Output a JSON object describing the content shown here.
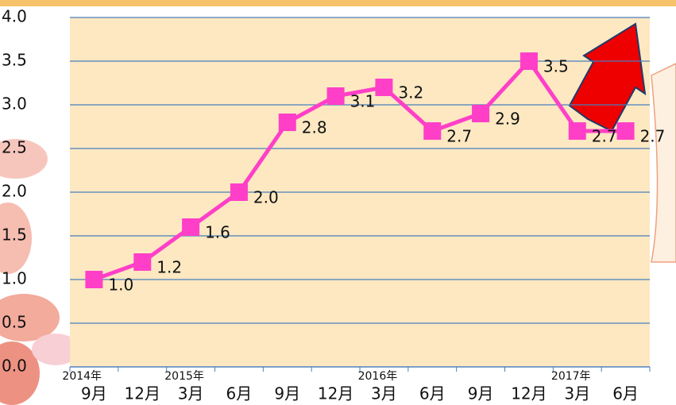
{
  "chart_data": {
    "type": "line",
    "categories": [
      "9月",
      "12月",
      "3月",
      "6月",
      "9月",
      "12月",
      "3月",
      "6月",
      "9月",
      "12月",
      "3月",
      "6月"
    ],
    "years": [
      "2014年",
      null,
      "2015年",
      null,
      null,
      null,
      "2016年",
      null,
      null,
      null,
      "2017年",
      null
    ],
    "series": [
      {
        "color": "#ff3fc8",
        "values": [
          1.0,
          1.2,
          1.6,
          2.0,
          2.8,
          3.1,
          3.2,
          2.7,
          2.9,
          3.5,
          2.7,
          2.7
        ],
        "value_labels": [
          "1.0",
          "1.2",
          "1.6",
          "2.0",
          "2.8",
          "3.1",
          "3.2",
          "2.7",
          "2.9",
          "3.5",
          "2.7",
          "2.7"
        ]
      }
    ],
    "ylim": [
      0,
      4
    ],
    "yticks": [
      {
        "value": 0,
        "label": "0.0"
      },
      {
        "value": 0.5,
        "label": "0.5"
      },
      {
        "value": 1,
        "label": "1.0"
      },
      {
        "value": 1.5,
        "label": "1.5"
      },
      {
        "value": 2,
        "label": "2.0"
      },
      {
        "value": 2.5,
        "label": "2.5"
      },
      {
        "value": 3,
        "label": "3.0"
      },
      {
        "value": 3.5,
        "label": "3.5"
      },
      {
        "value": 4,
        "label": "4.0"
      }
    ],
    "grid": true
  }
}
